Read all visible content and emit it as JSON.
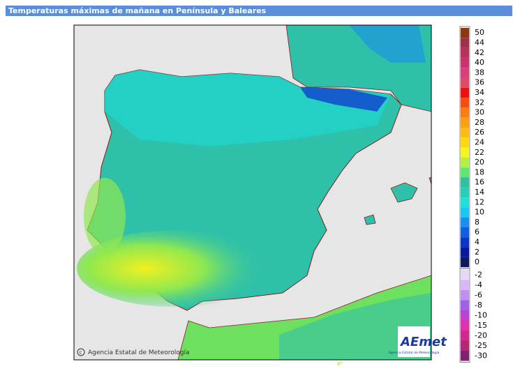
{
  "header": {
    "title": "Temperaturas máximas de mañana en Península y Baleares"
  },
  "map": {
    "credit": "Agencia Estatal de Meteorología",
    "logo": "AEmet",
    "logo_subtitle": "Agencia Estatal de Meteorología",
    "longitude_label": "8°"
  },
  "legend": {
    "items": [
      {
        "label": "50",
        "color": "#8b3a10"
      },
      {
        "label": "44",
        "color": "#a0304a"
      },
      {
        "label": "42",
        "color": "#b8305c"
      },
      {
        "label": "40",
        "color": "#cc3070"
      },
      {
        "label": "38",
        "color": "#d8407c"
      },
      {
        "label": "36",
        "color": "#e04a6a"
      },
      {
        "label": "34",
        "color": "#ee1010"
      },
      {
        "label": "32",
        "color": "#f84c10"
      },
      {
        "label": "30",
        "color": "#fc7c10"
      },
      {
        "label": "28",
        "color": "#fca010"
      },
      {
        "label": "26",
        "color": "#fcbc10"
      },
      {
        "label": "24",
        "color": "#fcd810"
      },
      {
        "label": "22",
        "color": "#f4f420"
      },
      {
        "label": "20",
        "color": "#b4f040"
      },
      {
        "label": "18",
        "color": "#5ce870"
      },
      {
        "label": "16",
        "color": "#2ec0a0"
      },
      {
        "label": "14",
        "color": "#24d0b8"
      },
      {
        "label": "12",
        "color": "#20e0d8"
      },
      {
        "label": "10",
        "color": "#18c8f0"
      },
      {
        "label": "8",
        "color": "#1890f0"
      },
      {
        "label": "6",
        "color": "#1060e0"
      },
      {
        "label": "4",
        "color": "#0838c8"
      },
      {
        "label": "2",
        "color": "#0818a0"
      },
      {
        "label": "0",
        "color": "#101860"
      }
    ],
    "negative_items": [
      {
        "label": "-2",
        "color": "#e8d8f8"
      },
      {
        "label": "-4",
        "color": "#d8b8f4"
      },
      {
        "label": "-6",
        "color": "#c090f0"
      },
      {
        "label": "-8",
        "color": "#a060e8"
      },
      {
        "label": "-10",
        "color": "#c040d0"
      },
      {
        "label": "-15",
        "color": "#e030b0"
      },
      {
        "label": "-20",
        "color": "#d02890"
      },
      {
        "label": "-25",
        "color": "#b02878"
      },
      {
        "label": "-30",
        "color": "#802070"
      }
    ]
  }
}
